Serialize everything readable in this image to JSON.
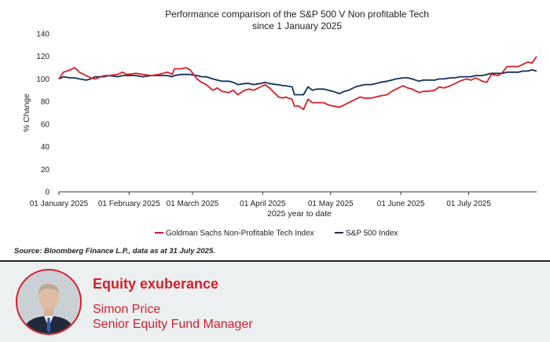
{
  "chart_data": {
    "type": "line",
    "title": [
      "Performance comparison of the S&P 500 V Non profitable Tech",
      "since 1 January 2025"
    ],
    "xlabel": "2025 year to date",
    "ylabel": "% Change",
    "ylim": [
      0,
      140
    ],
    "yticks": [
      0,
      20,
      40,
      60,
      80,
      100,
      120,
      140
    ],
    "xlim": [
      "2025-01-01",
      "2025-07-31"
    ],
    "xticks": [
      {
        "date": "2025-01-01",
        "label": "01 January 2025"
      },
      {
        "date": "2025-02-01",
        "label": "01 February 2025"
      },
      {
        "date": "2025-03-01",
        "label": "01 March 2025"
      },
      {
        "date": "2025-04-01",
        "label": "01 April 2025"
      },
      {
        "date": "2025-05-01",
        "label": "01 May 2025"
      },
      {
        "date": "2025-06-01",
        "label": "01 June 2025"
      },
      {
        "date": "2025-07-01",
        "label": "01 July 2025"
      }
    ],
    "grid": false,
    "legend": "bottom",
    "series": [
      {
        "name": "Goldman Sachs Non-Profitable Tech Index",
        "color": "#d71e28",
        "points": [
          [
            "2025-01-01",
            100
          ],
          [
            "2025-01-03",
            106
          ],
          [
            "2025-01-06",
            108
          ],
          [
            "2025-01-08",
            110
          ],
          [
            "2025-01-10",
            106
          ],
          [
            "2025-01-13",
            103
          ],
          [
            "2025-01-15",
            101
          ],
          [
            "2025-01-17",
            100
          ],
          [
            "2025-01-21",
            103
          ],
          [
            "2025-01-23",
            103
          ],
          [
            "2025-01-27",
            104
          ],
          [
            "2025-01-29",
            106
          ],
          [
            "2025-01-31",
            104
          ],
          [
            "2025-02-04",
            105
          ],
          [
            "2025-02-07",
            104
          ],
          [
            "2025-02-11",
            103
          ],
          [
            "2025-02-14",
            104
          ],
          [
            "2025-02-18",
            106
          ],
          [
            "2025-02-20",
            104
          ],
          [
            "2025-02-21",
            109
          ],
          [
            "2025-02-24",
            109
          ],
          [
            "2025-02-26",
            110
          ],
          [
            "2025-02-28",
            108
          ],
          [
            "2025-03-03",
            100
          ],
          [
            "2025-03-05",
            97
          ],
          [
            "2025-03-07",
            95
          ],
          [
            "2025-03-10",
            90
          ],
          [
            "2025-03-12",
            92
          ],
          [
            "2025-03-14",
            89
          ],
          [
            "2025-03-17",
            88
          ],
          [
            "2025-03-19",
            90
          ],
          [
            "2025-03-21",
            86
          ],
          [
            "2025-03-24",
            90
          ],
          [
            "2025-03-26",
            91
          ],
          [
            "2025-03-28",
            90
          ],
          [
            "2025-03-31",
            93
          ],
          [
            "2025-04-02",
            95
          ],
          [
            "2025-04-04",
            92
          ],
          [
            "2025-04-07",
            86
          ],
          [
            "2025-04-08",
            84
          ],
          [
            "2025-04-10",
            83
          ],
          [
            "2025-04-11",
            84
          ],
          [
            "2025-04-14",
            82
          ],
          [
            "2025-04-15",
            76
          ],
          [
            "2025-04-17",
            76
          ],
          [
            "2025-04-19",
            73
          ],
          [
            "2025-04-21",
            82
          ],
          [
            "2025-04-23",
            79
          ],
          [
            "2025-04-25",
            79
          ],
          [
            "2025-04-28",
            79
          ],
          [
            "2025-04-30",
            77
          ],
          [
            "2025-05-02",
            76
          ],
          [
            "2025-05-05",
            75
          ],
          [
            "2025-05-07",
            77
          ],
          [
            "2025-05-09",
            79
          ],
          [
            "2025-05-12",
            82
          ],
          [
            "2025-05-14",
            84
          ],
          [
            "2025-05-16",
            83
          ],
          [
            "2025-05-19",
            83
          ],
          [
            "2025-05-21",
            84
          ],
          [
            "2025-05-23",
            85
          ],
          [
            "2025-05-26",
            86
          ],
          [
            "2025-05-28",
            89
          ],
          [
            "2025-05-30",
            91
          ],
          [
            "2025-06-02",
            94
          ],
          [
            "2025-06-04",
            92
          ],
          [
            "2025-06-06",
            91
          ],
          [
            "2025-06-09",
            88
          ],
          [
            "2025-06-11",
            89
          ],
          [
            "2025-06-13",
            89
          ],
          [
            "2025-06-16",
            90
          ],
          [
            "2025-06-18",
            93
          ],
          [
            "2025-06-20",
            92
          ],
          [
            "2025-06-23",
            94
          ],
          [
            "2025-06-25",
            96
          ],
          [
            "2025-06-27",
            98
          ],
          [
            "2025-06-30",
            100
          ],
          [
            "2025-07-02",
            99
          ],
          [
            "2025-07-04",
            101
          ],
          [
            "2025-07-07",
            98
          ],
          [
            "2025-07-09",
            97
          ],
          [
            "2025-07-11",
            104
          ],
          [
            "2025-07-14",
            103
          ],
          [
            "2025-07-16",
            106
          ],
          [
            "2025-07-18",
            111
          ],
          [
            "2025-07-21",
            111
          ],
          [
            "2025-07-23",
            111
          ],
          [
            "2025-07-25",
            113
          ],
          [
            "2025-07-27",
            115
          ],
          [
            "2025-07-29",
            114
          ],
          [
            "2025-07-31",
            120
          ]
        ]
      },
      {
        "name": "S&P 500 Index",
        "color": "#12305c",
        "points": [
          [
            "2025-01-01",
            100
          ],
          [
            "2025-01-03",
            102
          ],
          [
            "2025-01-06",
            101
          ],
          [
            "2025-01-08",
            101
          ],
          [
            "2025-01-10",
            100
          ],
          [
            "2025-01-13",
            99
          ],
          [
            "2025-01-15",
            100
          ],
          [
            "2025-01-17",
            102
          ],
          [
            "2025-01-21",
            102
          ],
          [
            "2025-01-23",
            103
          ],
          [
            "2025-01-27",
            102
          ],
          [
            "2025-01-29",
            103
          ],
          [
            "2025-01-31",
            103
          ],
          [
            "2025-02-04",
            103
          ],
          [
            "2025-02-07",
            102
          ],
          [
            "2025-02-11",
            103
          ],
          [
            "2025-02-14",
            103
          ],
          [
            "2025-02-18",
            103
          ],
          [
            "2025-02-20",
            102
          ],
          [
            "2025-02-21",
            103
          ],
          [
            "2025-02-24",
            104
          ],
          [
            "2025-02-26",
            104
          ],
          [
            "2025-02-28",
            104
          ],
          [
            "2025-03-03",
            103
          ],
          [
            "2025-03-05",
            102
          ],
          [
            "2025-03-07",
            102
          ],
          [
            "2025-03-10",
            100
          ],
          [
            "2025-03-12",
            99
          ],
          [
            "2025-03-14",
            98
          ],
          [
            "2025-03-17",
            98
          ],
          [
            "2025-03-19",
            97
          ],
          [
            "2025-03-21",
            95
          ],
          [
            "2025-03-24",
            96
          ],
          [
            "2025-03-26",
            96
          ],
          [
            "2025-03-28",
            95
          ],
          [
            "2025-03-31",
            96
          ],
          [
            "2025-04-02",
            97
          ],
          [
            "2025-04-04",
            96
          ],
          [
            "2025-04-07",
            95
          ],
          [
            "2025-04-08",
            95
          ],
          [
            "2025-04-10",
            94
          ],
          [
            "2025-04-11",
            94
          ],
          [
            "2025-04-14",
            93
          ],
          [
            "2025-04-15",
            86
          ],
          [
            "2025-04-17",
            86
          ],
          [
            "2025-04-19",
            86
          ],
          [
            "2025-04-21",
            93
          ],
          [
            "2025-04-23",
            90
          ],
          [
            "2025-04-25",
            91
          ],
          [
            "2025-04-28",
            91
          ],
          [
            "2025-04-30",
            90
          ],
          [
            "2025-05-02",
            89
          ],
          [
            "2025-05-05",
            87
          ],
          [
            "2025-05-07",
            89
          ],
          [
            "2025-05-09",
            90
          ],
          [
            "2025-05-12",
            93
          ],
          [
            "2025-05-14",
            94
          ],
          [
            "2025-05-16",
            95
          ],
          [
            "2025-05-19",
            95
          ],
          [
            "2025-05-21",
            96
          ],
          [
            "2025-05-23",
            97
          ],
          [
            "2025-05-26",
            98
          ],
          [
            "2025-05-28",
            99
          ],
          [
            "2025-05-30",
            100
          ],
          [
            "2025-06-02",
            101
          ],
          [
            "2025-06-04",
            101
          ],
          [
            "2025-06-06",
            100
          ],
          [
            "2025-06-09",
            98
          ],
          [
            "2025-06-11",
            99
          ],
          [
            "2025-06-13",
            99
          ],
          [
            "2025-06-16",
            99
          ],
          [
            "2025-06-18",
            100
          ],
          [
            "2025-06-20",
            100
          ],
          [
            "2025-06-23",
            101
          ],
          [
            "2025-06-25",
            101
          ],
          [
            "2025-06-27",
            102
          ],
          [
            "2025-06-30",
            102
          ],
          [
            "2025-07-02",
            102
          ],
          [
            "2025-07-04",
            103
          ],
          [
            "2025-07-07",
            103
          ],
          [
            "2025-07-09",
            104
          ],
          [
            "2025-07-11",
            105
          ],
          [
            "2025-07-14",
            105
          ],
          [
            "2025-07-16",
            105
          ],
          [
            "2025-07-18",
            106
          ],
          [
            "2025-07-21",
            106
          ],
          [
            "2025-07-23",
            106
          ],
          [
            "2025-07-25",
            107
          ],
          [
            "2025-07-27",
            107
          ],
          [
            "2025-07-29",
            108
          ],
          [
            "2025-07-31",
            107
          ]
        ]
      }
    ]
  },
  "source_note": "Source: Bloomberg Finance L.P., data as at 31 July 2025.",
  "footer": {
    "heading": "Equity exuberance",
    "name": "Simon Price",
    "role": "Senior Equity Fund Manager",
    "accent_color": "#d71e28"
  }
}
